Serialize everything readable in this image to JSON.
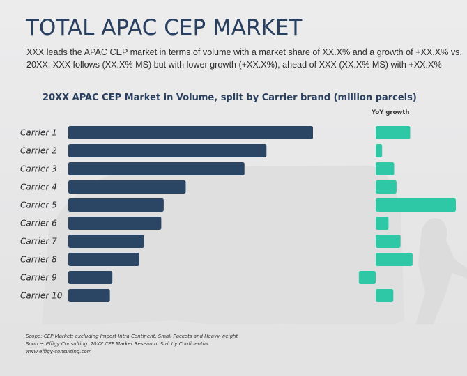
{
  "header": {
    "title": "TOTAL APAC CEP MARKET",
    "subtitle": "XXX leads the APAC CEP market in terms of volume with a market share of XX.X% and a growth of +XX.X% vs. 20XX. XXX follows (XX.X% MS) but with lower growth (+XX.X%), ahead of XXX (XX.X% MS) with +XX.X%"
  },
  "colors": {
    "volume_bar": "#2b4565",
    "growth_bar": "#2ec8a6",
    "title": "#2a4060"
  },
  "chart_data": [
    {
      "type": "bar",
      "orientation": "horizontal",
      "title": "20XX APAC CEP Market in Volume, split by Carrier brand (million parcels)",
      "xlabel": "",
      "ylabel": "",
      "categories": [
        "Carrier 1",
        "Carrier 2",
        "Carrier 3",
        "Carrier 4",
        "Carrier 5",
        "Carrier 6",
        "Carrier 7",
        "Carrier 8",
        "Carrier 9",
        "Carrier 10"
      ],
      "values": [
        100,
        81,
        72,
        48,
        39,
        38,
        31,
        29,
        18,
        17
      ],
      "value_units": "relative (no axis values shown; Carrier 1 = 100)",
      "xlim": [
        0,
        100
      ],
      "grid": false,
      "legend": "none"
    },
    {
      "type": "bar",
      "orientation": "horizontal",
      "title": "YoY growth",
      "categories": [
        "Carrier 1",
        "Carrier 2",
        "Carrier 3",
        "Carrier 4",
        "Carrier 5",
        "Carrier 6",
        "Carrier 7",
        "Carrier 8",
        "Carrier 9",
        "Carrier 10"
      ],
      "values": [
        43,
        8,
        23,
        26,
        100,
        16,
        31,
        46,
        -21,
        22
      ],
      "value_units": "relative (no axis values shown; Carrier 5 = 100)",
      "xlim": [
        -25,
        100
      ],
      "grid": false,
      "legend": "none"
    }
  ],
  "footer": {
    "scope": "Scope: CEP Market; excluding Import Intra-Continent, Small Packets and Heavy-weight",
    "source": "Source: Effigy Consulting. 20XX CEP Market Research. Strictly Confidential.",
    "website": "www.effigy-consulting.com"
  }
}
